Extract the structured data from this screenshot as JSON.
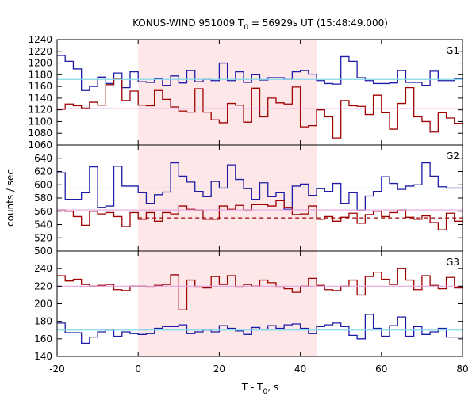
{
  "chart_data": {
    "type": "line",
    "title": "KONUS-WIND 951009 T",
    "title_sub": "0",
    "title_rest": " = 56929s UT (15:48:49.000)",
    "xlabel": "T - T",
    "xlabel_sub": "0",
    "xlabel_rest": ", s",
    "ylabel": "counts / sec",
    "xlim": [
      -20,
      80
    ],
    "x_ticks": [
      -20,
      0,
      20,
      40,
      60,
      80
    ],
    "shaded_interval": [
      0,
      44
    ],
    "colors": {
      "blue": "#1c1ca6",
      "red": "#9e0000",
      "cyan": "#86d7ea",
      "pink": "#e5a2e2",
      "shade": "#fde7e9"
    },
    "bin_edges": [
      -20,
      -18,
      -16,
      -14,
      -12,
      -10,
      -8,
      -6,
      -4,
      -2,
      0,
      2,
      4,
      6,
      8,
      10,
      12,
      14,
      16,
      18,
      20,
      22,
      24,
      26,
      28,
      30,
      32,
      34,
      36,
      38,
      40,
      42,
      44,
      46,
      48,
      50,
      52,
      54,
      56,
      58,
      60,
      62,
      64,
      66,
      68,
      70,
      72,
      74,
      76,
      78,
      80
    ],
    "panels": [
      {
        "label": "G1",
        "ylim": [
          1060,
          1240
        ],
        "y_ticks": [
          1060,
          1080,
          1100,
          1120,
          1140,
          1160,
          1180,
          1200,
          1220,
          1240
        ],
        "series": [
          {
            "color": "blue",
            "values": [
              1213,
              1203,
              1190,
              1153,
              1160,
              1176,
              1165,
              1183,
              1158,
              1185,
              1168,
              1167,
              1173,
              1162,
              1178,
              1166,
              1187,
              1168,
              1172,
              1170,
              1200,
              1170,
              1185,
              1167,
              1180,
              1171,
              1175,
              1175,
              1172,
              1185,
              1187,
              1181,
              1170,
              1165,
              1164,
              1211,
              1203,
              1175,
              1170,
              1165,
              1165,
              1166,
              1187,
              1167,
              1167,
              1162,
              1186,
              1170,
              1170,
              1173
            ]
          },
          {
            "color": "red",
            "values": [
              1121,
              1130,
              1127,
              1123,
              1133,
              1128,
              1163,
              1174,
              1136,
              1152,
              1128,
              1127,
              1153,
              1138,
              1125,
              1118,
              1116,
              1156,
              1116,
              1103,
              1098,
              1131,
              1128,
              1099,
              1157,
              1108,
              1140,
              1132,
              1130,
              1159,
              1091,
              1093,
              1120,
              1108,
              1072,
              1136,
              1127,
              1126,
              1112,
              1145,
              1115,
              1087,
              1131,
              1158,
              1108,
              1100,
              1082,
              1115,
              1106,
              1097
            ]
          },
          {
            "color": "cyan",
            "level": 1172
          },
          {
            "color": "pink",
            "level": 1122
          }
        ]
      },
      {
        "label": "G2",
        "ylim": [
          500,
          660
        ],
        "y_ticks": [
          500,
          520,
          540,
          560,
          580,
          600,
          620,
          640
        ],
        "series": [
          {
            "color": "blue",
            "values": [
              618,
              578,
              578,
              588,
              627,
              566,
              568,
              628,
              598,
              598,
              588,
              572,
              585,
              589,
              633,
              613,
              604,
              590,
              582,
              605,
              595,
              630,
              608,
              594,
              578,
              603,
              582,
              588,
              563,
              598,
              601,
              584,
              594,
              590,
              602,
              572,
              588,
              562,
              583,
              590,
              612,
              602,
              593,
              598,
              600,
              633,
              613,
              597,
              595,
              595
            ]
          },
          {
            "color": "red",
            "values": [
              562,
              560,
              552,
              539,
              560,
              556,
              558,
              552,
              537,
              558,
              548,
              558,
              545,
              558,
              556,
              568,
              563,
              562,
              548,
              548,
              568,
              563,
              569,
              562,
              570,
              570,
              568,
              576,
              566,
              555,
              556,
              568,
              548,
              552,
              545,
              551,
              557,
              542,
              555,
              560,
              552,
              558,
              562,
              551,
              548,
              553,
              543,
              532,
              557,
              545
            ]
          },
          {
            "color": "red",
            "level": 550,
            "dashed": true,
            "start": 0
          },
          {
            "color": "cyan",
            "level": 595
          },
          {
            "color": "pink",
            "level": 562
          }
        ]
      },
      {
        "label": "G3",
        "ylim": [
          140,
          260
        ],
        "y_ticks": [
          140,
          160,
          180,
          200,
          220,
          240
        ],
        "series": [
          {
            "color": "blue",
            "values": [
              178,
              167,
              167,
              155,
              162,
              168,
              170,
              163,
              168,
              166,
              165,
              166,
              172,
              174,
              174,
              176,
              166,
              168,
              170,
              168,
              175,
              172,
              169,
              165,
              173,
              171,
              175,
              172,
              176,
              177,
              172,
              166,
              174,
              176,
              178,
              174,
              164,
              160,
              188,
              172,
              163,
              175,
              185,
              163,
              174,
              165,
              168,
              172,
              162,
              162
            ]
          },
          {
            "color": "red",
            "values": [
              232,
              226,
              228,
              222,
              220,
              221,
              222,
              216,
              215,
              220,
              220,
              219,
              221,
              222,
              233,
              193,
              227,
              219,
              218,
              231,
              222,
              232,
              219,
              222,
              220,
              227,
              224,
              219,
              217,
              213,
              220,
              229,
              221,
              216,
              215,
              220,
              227,
              210,
              231,
              236,
              228,
              222,
              240,
              227,
              216,
              232,
              221,
              217,
              230,
              218
            ]
          },
          {
            "color": "cyan",
            "level": 170
          },
          {
            "color": "pink",
            "level": 220
          }
        ]
      }
    ]
  }
}
